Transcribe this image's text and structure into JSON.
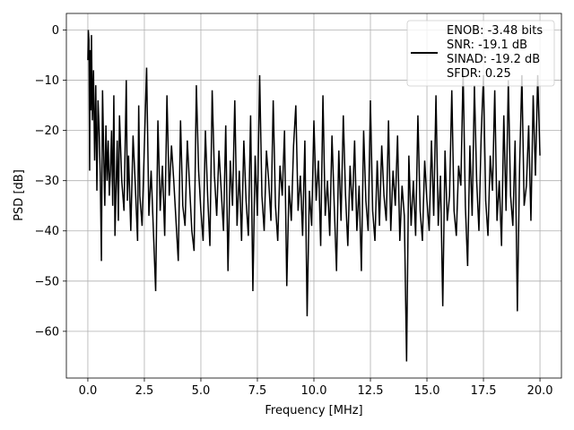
{
  "chart_data": {
    "type": "line",
    "title": "",
    "xlabel": "Frequency [MHz]",
    "ylabel": "PSD [dB]",
    "xlim": [
      -0.95,
      20.95
    ],
    "ylim": [
      -69.3,
      3.3
    ],
    "xticks": [
      0.0,
      2.5,
      5.0,
      7.5,
      10.0,
      12.5,
      15.0,
      17.5,
      20.0
    ],
    "xtick_labels": [
      "0.0",
      "2.5",
      "5.0",
      "7.5",
      "10.0",
      "12.5",
      "15.0",
      "17.5",
      "20.0"
    ],
    "yticks": [
      0,
      -10,
      -20,
      -30,
      -40,
      -50,
      -60
    ],
    "ytick_labels": [
      "0",
      "−10",
      "−20",
      "−30",
      "−40",
      "−50",
      "−60"
    ],
    "grid": true,
    "legend_position": "top-right",
    "line_color": "#000000",
    "series": [
      {
        "name": "ENOB: -3.48 bits\nSNR: -19.1 dB\nSINAD: -19.2 dB\nSFDR: 0.25",
        "legend_lines": [
          "ENOB: -3.48 bits",
          "SNR: -19.1 dB",
          "SINAD: -19.2 dB",
          "SFDR: 0.25"
        ],
        "x_range": [
          0,
          20
        ],
        "points": [
          [
            0.0,
            -6
          ],
          [
            0.02,
            0
          ],
          [
            0.05,
            -2
          ],
          [
            0.08,
            -28
          ],
          [
            0.1,
            -4
          ],
          [
            0.13,
            -16
          ],
          [
            0.16,
            -1
          ],
          [
            0.2,
            -18
          ],
          [
            0.25,
            -8
          ],
          [
            0.3,
            -26
          ],
          [
            0.35,
            -11
          ],
          [
            0.4,
            -32
          ],
          [
            0.45,
            -14
          ],
          [
            0.5,
            -20
          ],
          [
            0.55,
            -29
          ],
          [
            0.6,
            -46
          ],
          [
            0.65,
            -12
          ],
          [
            0.7,
            -24
          ],
          [
            0.75,
            -35
          ],
          [
            0.8,
            -19
          ],
          [
            0.85,
            -30
          ],
          [
            0.9,
            -22
          ],
          [
            0.95,
            -33
          ],
          [
            1.0,
            -28
          ],
          [
            1.05,
            -20
          ],
          [
            1.1,
            -35
          ],
          [
            1.15,
            -13
          ],
          [
            1.2,
            -41
          ],
          [
            1.3,
            -22
          ],
          [
            1.35,
            -38
          ],
          [
            1.4,
            -17
          ],
          [
            1.5,
            -30
          ],
          [
            1.6,
            -36
          ],
          [
            1.7,
            -10
          ],
          [
            1.75,
            -34
          ],
          [
            1.8,
            -25
          ],
          [
            1.9,
            -40
          ],
          [
            2.0,
            -21
          ],
          [
            2.1,
            -31
          ],
          [
            2.2,
            -42
          ],
          [
            2.25,
            -15
          ],
          [
            2.3,
            -33
          ],
          [
            2.4,
            -39
          ],
          [
            2.5,
            -23
          ],
          [
            2.6,
            -7.5
          ],
          [
            2.7,
            -37
          ],
          [
            2.8,
            -28
          ],
          [
            2.9,
            -40
          ],
          [
            3.0,
            -52
          ],
          [
            3.1,
            -18
          ],
          [
            3.2,
            -36
          ],
          [
            3.3,
            -27
          ],
          [
            3.4,
            -41
          ],
          [
            3.5,
            -13
          ],
          [
            3.6,
            -33
          ],
          [
            3.7,
            -23
          ],
          [
            3.8,
            -30
          ],
          [
            3.9,
            -38
          ],
          [
            4.0,
            -46
          ],
          [
            4.1,
            -18
          ],
          [
            4.2,
            -35
          ],
          [
            4.3,
            -39
          ],
          [
            4.4,
            -22
          ],
          [
            4.5,
            -31
          ],
          [
            4.6,
            -40
          ],
          [
            4.7,
            -44
          ],
          [
            4.8,
            -11
          ],
          [
            4.9,
            -28
          ],
          [
            5.0,
            -36
          ],
          [
            5.1,
            -42
          ],
          [
            5.2,
            -20
          ],
          [
            5.3,
            -33
          ],
          [
            5.4,
            -43
          ],
          [
            5.5,
            -12
          ],
          [
            5.6,
            -29
          ],
          [
            5.7,
            -37
          ],
          [
            5.8,
            -24
          ],
          [
            5.9,
            -32
          ],
          [
            6.0,
            -40
          ],
          [
            6.1,
            -19
          ],
          [
            6.2,
            -48
          ],
          [
            6.3,
            -26
          ],
          [
            6.4,
            -35
          ],
          [
            6.5,
            -14
          ],
          [
            6.6,
            -39
          ],
          [
            6.7,
            -28
          ],
          [
            6.8,
            -42
          ],
          [
            6.9,
            -22
          ],
          [
            7.0,
            -34
          ],
          [
            7.1,
            -41
          ],
          [
            7.2,
            -17
          ],
          [
            7.3,
            -52
          ],
          [
            7.4,
            -25
          ],
          [
            7.5,
            -37
          ],
          [
            7.6,
            -9
          ],
          [
            7.7,
            -33
          ],
          [
            7.8,
            -40
          ],
          [
            7.9,
            -24
          ],
          [
            8.0,
            -30
          ],
          [
            8.1,
            -38
          ],
          [
            8.2,
            -14
          ],
          [
            8.3,
            -35
          ],
          [
            8.4,
            -42
          ],
          [
            8.5,
            -27
          ],
          [
            8.6,
            -33
          ],
          [
            8.7,
            -20
          ],
          [
            8.8,
            -51
          ],
          [
            8.9,
            -31
          ],
          [
            9.0,
            -38
          ],
          [
            9.1,
            -23
          ],
          [
            9.2,
            -15
          ],
          [
            9.3,
            -36
          ],
          [
            9.4,
            -29
          ],
          [
            9.5,
            -41
          ],
          [
            9.6,
            -22
          ],
          [
            9.7,
            -57
          ],
          [
            9.8,
            -32
          ],
          [
            9.9,
            -39
          ],
          [
            10.0,
            -18
          ],
          [
            10.1,
            -34
          ],
          [
            10.2,
            -26
          ],
          [
            10.3,
            -43
          ],
          [
            10.4,
            -13
          ],
          [
            10.5,
            -37
          ],
          [
            10.6,
            -30
          ],
          [
            10.7,
            -41
          ],
          [
            10.8,
            -21
          ],
          [
            10.9,
            -35
          ],
          [
            11.0,
            -48
          ],
          [
            11.1,
            -24
          ],
          [
            11.2,
            -38
          ],
          [
            11.3,
            -17
          ],
          [
            11.4,
            -33
          ],
          [
            11.5,
            -43
          ],
          [
            11.6,
            -27
          ],
          [
            11.7,
            -36
          ],
          [
            11.8,
            -22
          ],
          [
            11.9,
            -40
          ],
          [
            12.0,
            -31
          ],
          [
            12.1,
            -48
          ],
          [
            12.2,
            -20
          ],
          [
            12.3,
            -34
          ],
          [
            12.4,
            -40
          ],
          [
            12.5,
            -14
          ],
          [
            12.6,
            -36
          ],
          [
            12.7,
            -42
          ],
          [
            12.8,
            -26
          ],
          [
            12.9,
            -39
          ],
          [
            13.0,
            -23
          ],
          [
            13.1,
            -33
          ],
          [
            13.2,
            -38
          ],
          [
            13.3,
            -18
          ],
          [
            13.4,
            -40
          ],
          [
            13.5,
            -28
          ],
          [
            13.6,
            -35
          ],
          [
            13.7,
            -21
          ],
          [
            13.8,
            -42
          ],
          [
            13.9,
            -31
          ],
          [
            14.0,
            -37
          ],
          [
            14.1,
            -66
          ],
          [
            14.2,
            -25
          ],
          [
            14.3,
            -39
          ],
          [
            14.4,
            -30
          ],
          [
            14.5,
            -41
          ],
          [
            14.6,
            -17
          ],
          [
            14.7,
            -36
          ],
          [
            14.8,
            -42
          ],
          [
            14.9,
            -26
          ],
          [
            15.0,
            -34
          ],
          [
            15.1,
            -40
          ],
          [
            15.2,
            -22
          ],
          [
            15.3,
            -37
          ],
          [
            15.4,
            -13
          ],
          [
            15.5,
            -39
          ],
          [
            15.6,
            -29
          ],
          [
            15.7,
            -55
          ],
          [
            15.8,
            -24
          ],
          [
            15.9,
            -38
          ],
          [
            16.0,
            -33
          ],
          [
            16.1,
            -12
          ],
          [
            16.2,
            -36
          ],
          [
            16.3,
            -41
          ],
          [
            16.4,
            -27
          ],
          [
            16.5,
            -31
          ],
          [
            16.6,
            -8
          ],
          [
            16.7,
            -35
          ],
          [
            16.8,
            -47
          ],
          [
            16.9,
            -23
          ],
          [
            17.0,
            -37
          ],
          [
            17.1,
            -11
          ],
          [
            17.2,
            -30
          ],
          [
            17.3,
            -40
          ],
          [
            17.4,
            -21
          ],
          [
            17.5,
            -9
          ],
          [
            17.6,
            -34
          ],
          [
            17.7,
            -41
          ],
          [
            17.8,
            -25
          ],
          [
            17.9,
            -32
          ],
          [
            18.0,
            -12
          ],
          [
            18.1,
            -38
          ],
          [
            18.2,
            -30
          ],
          [
            18.3,
            -43
          ],
          [
            18.4,
            -17
          ],
          [
            18.5,
            -36
          ],
          [
            18.6,
            -10
          ],
          [
            18.7,
            -33
          ],
          [
            18.8,
            -39
          ],
          [
            18.9,
            -22
          ],
          [
            19.0,
            -56
          ],
          [
            19.1,
            -27
          ],
          [
            19.2,
            -9
          ],
          [
            19.3,
            -35
          ],
          [
            19.4,
            -31
          ],
          [
            19.5,
            -19
          ],
          [
            19.6,
            -38
          ],
          [
            19.7,
            -13
          ],
          [
            19.8,
            -29
          ],
          [
            19.9,
            -9
          ],
          [
            20.0,
            -25
          ]
        ]
      }
    ]
  }
}
